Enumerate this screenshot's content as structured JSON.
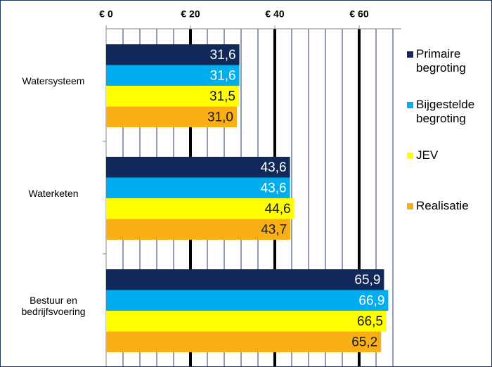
{
  "chart_data": {
    "type": "barh",
    "categories": [
      "Watersysteem",
      "Waterketen",
      "Bestuur en bedrijfsvoering"
    ],
    "series": [
      {
        "name": "Primaire begroting",
        "color": "#10295a",
        "values": [
          31.6,
          43.6,
          65.9
        ],
        "value_labels": [
          "31,6",
          "43,6",
          "65,9"
        ]
      },
      {
        "name": "Bijgestelde begroting",
        "color": "#00aeef",
        "values": [
          31.6,
          43.6,
          66.9
        ],
        "value_labels": [
          "31,6",
          "43,6",
          "66,9"
        ]
      },
      {
        "name": "JEV",
        "color": "#ffff00",
        "values": [
          31.5,
          44.6,
          66.5
        ],
        "value_labels": [
          "31,5",
          "44,6",
          "66,5"
        ]
      },
      {
        "name": "Realisatie",
        "color": "#f9b016",
        "values": [
          31.0,
          43.7,
          65.2
        ],
        "value_labels": [
          "31,0",
          "43,7",
          "65,2"
        ]
      }
    ],
    "xlim": [
      0,
      70
    ],
    "xticks": [
      {
        "value": 0,
        "label": "€ 0"
      },
      {
        "value": 20,
        "label": "€ 20"
      },
      {
        "value": 40,
        "label": "€ 40"
      },
      {
        "value": 60,
        "label": "€ 60"
      }
    ],
    "minor_xticks": [
      4,
      8,
      12,
      16,
      24,
      28,
      32,
      36,
      44,
      48,
      52,
      56,
      64,
      68
    ],
    "grid": true,
    "legend": "right"
  }
}
